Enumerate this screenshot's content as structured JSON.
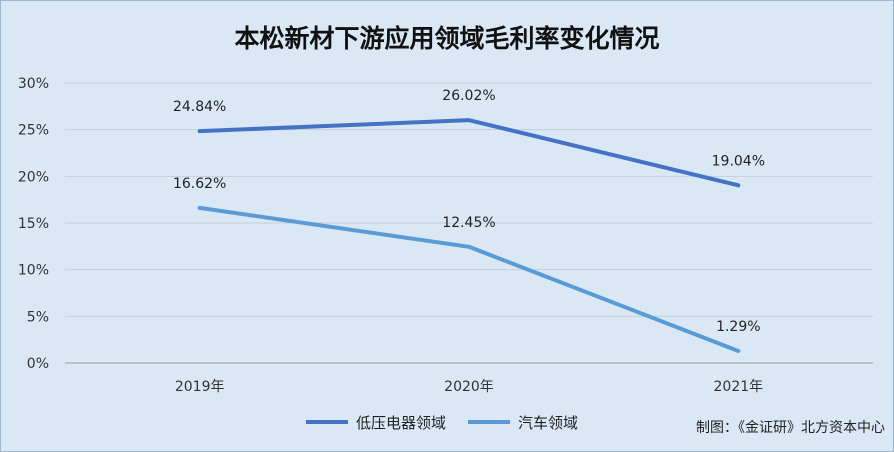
{
  "title": "本松新材下游应用领域毛利率变化情况",
  "source": "制图：《金证研》北方资本中心",
  "chart_data": {
    "type": "line",
    "categories": [
      "2019年",
      "2020年",
      "2021年"
    ],
    "ylim": [
      0,
      30
    ],
    "yticks": [
      "0%",
      "5%",
      "10%",
      "15%",
      "20%",
      "25%",
      "30%"
    ],
    "grid": true,
    "legend_position": "bottom",
    "series": [
      {
        "name": "低压电器领域",
        "values": [
          24.84,
          26.02,
          19.04
        ],
        "labels": [
          "24.84%",
          "26.02%",
          "19.04%"
        ],
        "color": "#4472c4"
      },
      {
        "name": "汽车领域",
        "values": [
          16.62,
          12.45,
          1.29
        ],
        "labels": [
          "16.62%",
          "12.45%",
          "1.29%"
        ],
        "color": "#5b9bd5"
      }
    ]
  }
}
